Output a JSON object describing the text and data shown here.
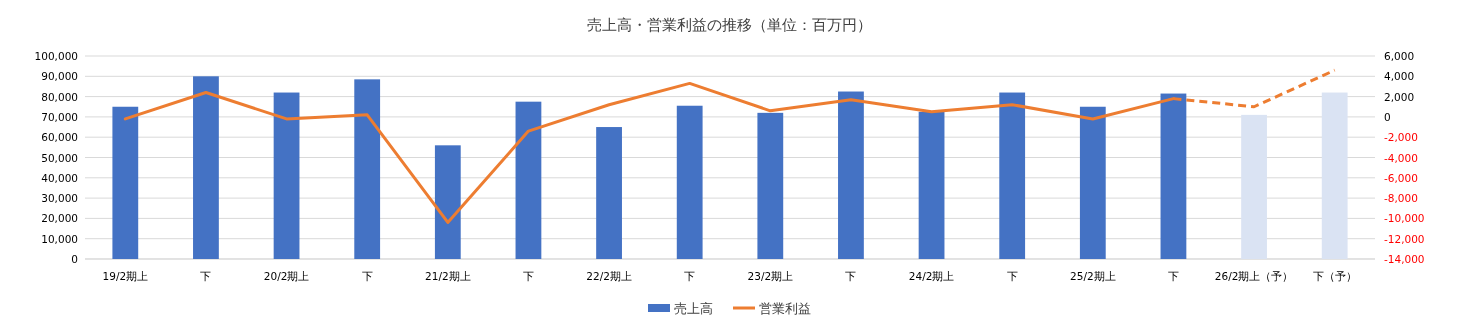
{
  "chart_data": {
    "type": "bar",
    "title": "売上高・営業利益の推移（単位：百万円）",
    "categories": [
      "19/2期上",
      "下",
      "20/2期上",
      "下",
      "21/2期上",
      "下",
      "22/2期上",
      "下",
      "23/2期上",
      "下",
      "24/2期上",
      "下",
      "25/2期上",
      "下",
      "26/2期上（予）",
      "下（予）"
    ],
    "ylim": [
      0,
      100000
    ],
    "yticks": [
      {
        "value": 0,
        "label": "0"
      },
      {
        "value": 10000,
        "label": "10,000"
      },
      {
        "value": 20000,
        "label": "20,000"
      },
      {
        "value": 30000,
        "label": "30,000"
      },
      {
        "value": 40000,
        "label": "40,000"
      },
      {
        "value": 50000,
        "label": "50,000"
      },
      {
        "value": 60000,
        "label": "60,000"
      },
      {
        "value": 70000,
        "label": "70,000"
      },
      {
        "value": 80000,
        "label": "80,000"
      },
      {
        "value": 90000,
        "label": "90,000"
      },
      {
        "value": 100000,
        "label": "100,000"
      }
    ],
    "y2lim": [
      -14000,
      6000
    ],
    "y2ticks": [
      {
        "value": -14000,
        "label": "-14,000"
      },
      {
        "value": -12000,
        "label": "-12,000"
      },
      {
        "value": -10000,
        "label": "-10,000"
      },
      {
        "value": -8000,
        "label": "-8,000"
      },
      {
        "value": -6000,
        "label": "-6,000"
      },
      {
        "value": -4000,
        "label": "-4,000"
      },
      {
        "value": -2000,
        "label": "-2,000"
      },
      {
        "value": 0,
        "label": "0"
      },
      {
        "value": 2000,
        "label": "2,000"
      },
      {
        "value": 4000,
        "label": "4,000"
      },
      {
        "value": 6000,
        "label": "6,000"
      }
    ],
    "grid": "y",
    "legend": "bottom",
    "series": [
      {
        "name": "売上高",
        "color": "#4472c4",
        "colors": [
          "#4472c4",
          "#4472c4",
          "#4472c4",
          "#4472c4",
          "#4472c4",
          "#4472c4",
          "#4472c4",
          "#4472c4",
          "#4472c4",
          "#4472c4",
          "#4472c4",
          "#4472c4",
          "#4472c4",
          "#4472c4",
          "#dae3f3",
          "#dae3f3"
        ],
        "values": [
          75000,
          90000,
          82000,
          88500,
          56000,
          77500,
          65000,
          75500,
          72000,
          82500,
          72500,
          82000,
          75000,
          81500,
          71000,
          82000
        ]
      },
      {
        "name": "営業利益",
        "type": "line",
        "axis": "y2",
        "color": "#ed7d31",
        "line_style": "solid",
        "values": [
          -200,
          2400,
          -200,
          200,
          -10400,
          -1400,
          1200,
          3300,
          600,
          1700,
          500,
          1200,
          -200,
          1800,
          null,
          null
        ]
      },
      {
        "type": "line",
        "axis": "y2",
        "color": "#ed7d31",
        "line_style": "dashed",
        "values": [
          null,
          null,
          null,
          null,
          null,
          null,
          null,
          null,
          null,
          null,
          null,
          null,
          null,
          1800,
          1000,
          4600
        ]
      }
    ]
  }
}
